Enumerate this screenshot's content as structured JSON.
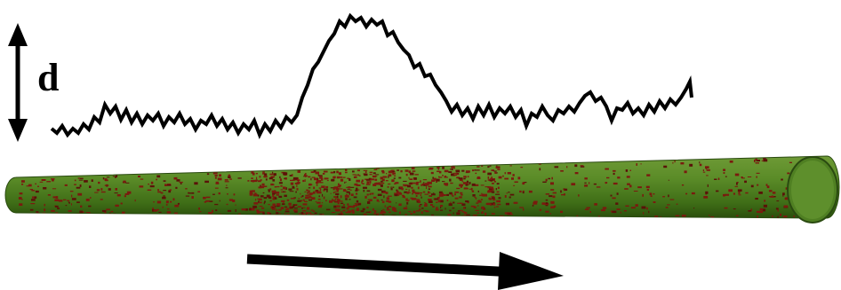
{
  "label": "d"
}
